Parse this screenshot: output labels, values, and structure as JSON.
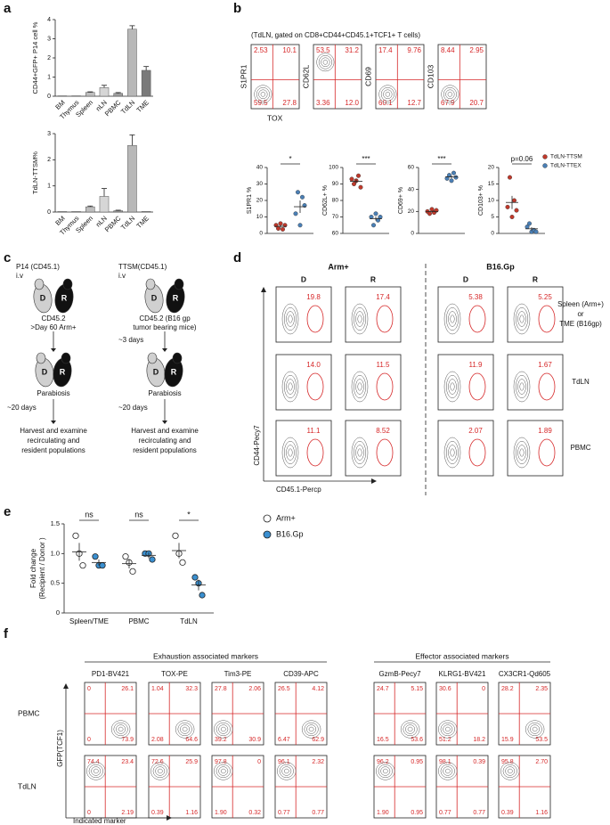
{
  "panel_labels": [
    "a",
    "b",
    "c",
    "d",
    "e",
    "f"
  ],
  "chart_data": [
    {
      "type": "bar",
      "ylabel": "CD44+GFP+ P14 cell %",
      "categories": [
        "BM",
        "Thymus",
        "Spleen",
        "nLN",
        "PBMC",
        "TdLN",
        "TME"
      ],
      "values": [
        0.02,
        0.02,
        0.2,
        0.45,
        0.15,
        3.5,
        1.35
      ],
      "errors": [
        0,
        0,
        0.03,
        0.12,
        0.04,
        0.18,
        0.2
      ],
      "colors": [
        "#cfcfcf",
        "#cfcfcf",
        "#bdbdbd",
        "#d6d6d6",
        "#9e9e9e",
        "#b8b8b8",
        "#7a7a7a"
      ],
      "ylim": [
        0,
        4
      ],
      "yticks": [
        0,
        1,
        2,
        3,
        4
      ]
    },
    {
      "type": "bar",
      "ylabel": "TdLN-TTSM%",
      "categories": [
        "BM",
        "Thymus",
        "Spleen",
        "nLN",
        "PBMC",
        "TdLN",
        "TME"
      ],
      "values": [
        0.02,
        0.02,
        0.2,
        0.6,
        0.05,
        2.55,
        0.02
      ],
      "errors": [
        0,
        0,
        0.03,
        0.3,
        0.02,
        0.4,
        0
      ],
      "colors": [
        "#cfcfcf",
        "#cfcfcf",
        "#bdbdbd",
        "#d6d6d6",
        "#9e9e9e",
        "#b8b8b8",
        "#7a7a7a"
      ],
      "ylim": [
        0,
        3
      ],
      "yticks": [
        0,
        1,
        2,
        3
      ]
    },
    {
      "type": "dot",
      "ylabel": "S1PR1 %",
      "values": [
        [
          5,
          3,
          6,
          2.5,
          5
        ],
        [
          12,
          25,
          5,
          22,
          17
        ]
      ],
      "means": [
        4.3,
        16.2
      ],
      "errors": [
        0.7,
        3.8
      ],
      "annotation": "*",
      "ylim": [
        0,
        40
      ],
      "yticks": [
        0,
        10,
        20,
        30,
        40
      ]
    },
    {
      "type": "dot",
      "ylabel": "CD62L+ %",
      "values": [
        [
          93,
          90,
          92,
          95,
          88
        ],
        [
          70,
          65,
          72,
          68,
          70
        ]
      ],
      "means": [
        91.6,
        69
      ],
      "errors": [
        1.2,
        1.2
      ],
      "annotation": "***",
      "ylim": [
        60,
        100
      ],
      "yticks": [
        60,
        70,
        80,
        90,
        100
      ]
    },
    {
      "type": "dot",
      "ylabel": "CD69+ %",
      "values": [
        [
          20,
          18,
          22,
          19,
          21
        ],
        [
          50,
          53,
          48,
          55,
          51
        ]
      ],
      "means": [
        20,
        51.4
      ],
      "errors": [
        0.7,
        1.2
      ],
      "annotation": "***",
      "ylim": [
        0,
        60
      ],
      "yticks": [
        0,
        20,
        40,
        60
      ]
    },
    {
      "type": "dot",
      "ylabel": "CD103+ %",
      "values": [
        [
          8,
          17,
          5,
          10,
          7
        ],
        [
          2,
          3,
          0.5,
          1,
          0.5
        ]
      ],
      "means": [
        9.4,
        1.4
      ],
      "errors": [
        2,
        0.5
      ],
      "annotation": "p=0.06",
      "ylim": [
        0,
        20
      ],
      "yticks": [
        0,
        5,
        10,
        15,
        20
      ]
    },
    {
      "type": "groupdot",
      "ylabel": [
        "Fold change",
        "(Recipient / Donor )"
      ],
      "categories": [
        "Spleen/TME",
        "PBMC",
        "TdLN"
      ],
      "series": [
        {
          "name": "Arm+",
          "color": "#ffffff",
          "values": [
            [
              1.3,
              1.0,
              0.8
            ],
            [
              0.95,
              0.85,
              0.7
            ],
            [
              1.3,
              1.0,
              0.85
            ]
          ],
          "means": [
            1.03,
            0.83,
            1.05
          ],
          "errors": [
            0.15,
            0.08,
            0.13
          ]
        },
        {
          "name": "B16.Gp",
          "color": "#3a8fd0",
          "values": [
            [
              0.95,
              0.8,
              0.8
            ],
            [
              1.0,
              1.0,
              0.9
            ],
            [
              0.6,
              0.5,
              0.3
            ]
          ],
          "means": [
            0.85,
            0.97,
            0.47
          ],
          "errors": [
            0.05,
            0.05,
            0.09
          ]
        }
      ],
      "annotations": [
        "ns",
        "ns",
        "*"
      ],
      "ylim": [
        0,
        1.5
      ],
      "yticks": [
        0,
        0.5,
        {
          "value": 1,
          "label": "1.0"
        },
        1.5
      ]
    }
  ],
  "panel_b": {
    "title": "(TdLN, gated on CD8+CD44+CD45.1+TCF1+ T cells)",
    "x_label": "TOX",
    "flows": [
      {
        "y_label": "S1PR1",
        "quadrants": [
          "2.53",
          "10.1",
          "59.5",
          "27.8"
        ]
      },
      {
        "y_label": "CD62L",
        "quadrants": [
          "53.5",
          "31.2",
          "3.36",
          "12.0"
        ]
      },
      {
        "y_label": "CD69",
        "quadrants": [
          "17.4",
          "9.76",
          "60.1",
          "12.7"
        ]
      },
      {
        "y_label": "CD103",
        "quadrants": [
          "8.44",
          "2.95",
          "67.9",
          "20.7"
        ]
      }
    ],
    "legend": [
      {
        "name": "TdLN-TTSM",
        "color": "#c0392b"
      },
      {
        "name": "TdLN-TTEX",
        "color": "#4a7fb5"
      }
    ]
  },
  "panel_c": {
    "mouse_labels": [
      "D",
      "R"
    ],
    "left": {
      "donor": "P14 (CD45.1)",
      "route": "i.v",
      "host": [
        "CD45.2",
        ">Day 60 Arm+"
      ],
      "join": "Parabiosis",
      "wait": "~20 days",
      "end": [
        "Harvest and examine",
        "recirculating and",
        "resident populations"
      ]
    },
    "right": {
      "donor": "TTSM(CD45.1)",
      "route": "i.v",
      "host": [
        "CD45.2 (B16 gp",
        "tumor bearing mice)"
      ],
      "delay": "~3 days",
      "join": "Parabiosis",
      "wait": "~20 days",
      "end": [
        "Harvest and examine",
        "recirculating and",
        "resident populations"
      ]
    }
  },
  "panel_d": {
    "groups": [
      "Arm+",
      "B16.Gp"
    ],
    "subgroups": [
      "D",
      "R"
    ],
    "y_label": "CD44-Pecy7",
    "x_label": "CD45.1-Percp",
    "rows": [
      {
        "label": [
          "Spleen (Arm+)",
          "or",
          "TME (B16gp)"
        ],
        "values": [
          "19.8",
          "17.4",
          "5.38",
          "5.25"
        ]
      },
      {
        "label": [
          "TdLN"
        ],
        "values": [
          "14.0",
          "11.5",
          "11.9",
          "1.67"
        ]
      },
      {
        "label": [
          "PBMC"
        ],
        "values": [
          "11.1",
          "8.52",
          "2.07",
          "1.89"
        ]
      }
    ]
  },
  "panel_f": {
    "y_label": "GFP(TCF1)",
    "x_label": "Indicated marker",
    "groups": [
      {
        "title": "Exhaustion associated markers",
        "markers": [
          "PD1-BV421",
          "TOX-PE",
          "Tim3-PE",
          "CD39-APC"
        ]
      },
      {
        "title": "Effector associated markers",
        "markers": [
          "GzmB-Pecy7",
          "KLRG1-BV421",
          "CX3CR1-Qd605"
        ]
      }
    ],
    "rows": [
      {
        "label": "PBMC",
        "quadrants": [
          [
            "0",
            "26.1",
            "0",
            "73.9"
          ],
          [
            "1.04",
            "32.3",
            "2.08",
            "64.6"
          ],
          [
            "27.8",
            "2.06",
            "39.2",
            "30.9"
          ],
          [
            "26.5",
            "4.12",
            "6.47",
            "62.9"
          ],
          [
            "24.7",
            "5.15",
            "16.5",
            "53.6"
          ],
          [
            "30.6",
            "0",
            "51.2",
            "18.2"
          ],
          [
            "28.2",
            "2.35",
            "15.9",
            "53.5"
          ]
        ]
      },
      {
        "label": "TdLN",
        "quadrants": [
          [
            "74.4",
            "23.4",
            "0",
            "2.19"
          ],
          [
            "72.6",
            "25.9",
            "0.39",
            "1.16"
          ],
          [
            "97.8",
            "0",
            "1.90",
            "0.32"
          ],
          [
            "96.1",
            "2.32",
            "0.77",
            "0.77"
          ],
          [
            "96.2",
            "0.95",
            "1.90",
            "0.95"
          ],
          [
            "98.1",
            "0.39",
            "0.77",
            "0.77"
          ],
          [
            "95.8",
            "2.70",
            "0.39",
            "1.16"
          ]
        ]
      }
    ]
  }
}
